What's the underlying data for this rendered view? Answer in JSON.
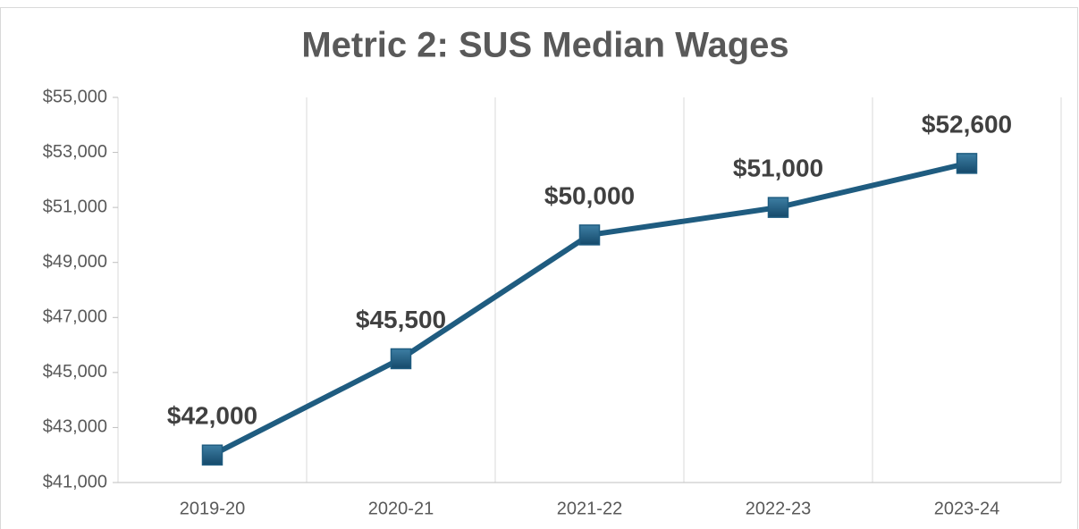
{
  "chart_data": {
    "type": "line",
    "title": "Metric 2: SUS Median Wages",
    "categories": [
      "2019-20",
      "2020-21",
      "2021-22",
      "2022-23",
      "2023-24"
    ],
    "series": [
      {
        "name": "SUS Median Wages",
        "color": "#1f5c80",
        "values": [
          42000,
          45500,
          50000,
          51000,
          52600
        ],
        "value_labels": [
          "$42,000",
          "$45,500",
          "$50,000",
          "$51,000",
          "$52,600"
        ]
      }
    ],
    "ylim": [
      41000,
      55000
    ],
    "yticks": [
      {
        "value": 41000,
        "label": "$41,000"
      },
      {
        "value": 43000,
        "label": "$43,000"
      },
      {
        "value": 45000,
        "label": "$45,000"
      },
      {
        "value": 47000,
        "label": "$47,000"
      },
      {
        "value": 49000,
        "label": "$49,000"
      },
      {
        "value": 51000,
        "label": "$51,000"
      },
      {
        "value": 53000,
        "label": "$53,000"
      },
      {
        "value": 55000,
        "label": "$55,000"
      }
    ],
    "grid": true
  }
}
